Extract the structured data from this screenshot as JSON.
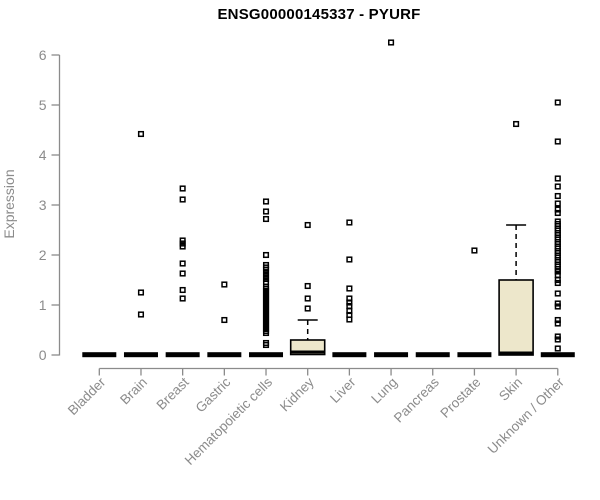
{
  "colors": {
    "background": "#FFFFFF",
    "title": "#000000",
    "axis": "#8B8B8B",
    "data": "#000000",
    "box_fill": "#EDE7CB"
  },
  "chart_data": {
    "type": "boxplot",
    "title": "ENSG00000145337 - PYURF",
    "ylabel": "Expression",
    "xlabel": "",
    "ylim": [
      0,
      6
    ],
    "yticks": [
      "0",
      "1",
      "2",
      "3",
      "4",
      "5",
      "6"
    ],
    "grid": false,
    "legend": "none",
    "categories": [
      "Bladder",
      "Brain",
      "Breast",
      "Gastric",
      "Hematopoietic cells",
      "Kidney",
      "Liver",
      "Lung",
      "Pancreas",
      "Prostate",
      "Skin",
      "Unknown / Other"
    ],
    "series": [
      {
        "name": "Bladder",
        "collapsed": true,
        "q1": 0,
        "median": 0,
        "q3": 0.04,
        "whisker_low": 0,
        "whisker_high": 0.04,
        "outliers": []
      },
      {
        "name": "Brain",
        "collapsed": true,
        "q1": 0,
        "median": 0,
        "q3": 0.04,
        "whisker_low": 0,
        "whisker_high": 0.04,
        "outliers": [
          4.42,
          1.25,
          0.81
        ]
      },
      {
        "name": "Breast",
        "collapsed": true,
        "q1": 0,
        "median": 0,
        "q3": 0.04,
        "whisker_low": 0,
        "whisker_high": 0.04,
        "outliers": [
          3.33,
          3.11,
          2.29,
          2.23,
          2.17,
          1.83,
          1.63,
          1.3,
          1.13
        ]
      },
      {
        "name": "Gastric",
        "collapsed": true,
        "q1": 0,
        "median": 0,
        "q3": 0.04,
        "whisker_low": 0,
        "whisker_high": 0.04,
        "outliers": [
          1.41,
          0.7
        ]
      },
      {
        "name": "Hematopoietic cells",
        "collapsed": true,
        "q1": 0,
        "median": 0,
        "q3": 0.04,
        "whisker_low": 0,
        "whisker_high": 0.04,
        "outliers": [
          3.07,
          2.87,
          2.72,
          2.0,
          1.8,
          1.75,
          1.7,
          1.64,
          1.58,
          1.52,
          1.46,
          1.36,
          1.32,
          1.28,
          1.24,
          1.2,
          1.16,
          1.12,
          1.08,
          1.04,
          1.0,
          0.96,
          0.92,
          0.88,
          0.84,
          0.8,
          0.76,
          0.72,
          0.68,
          0.64,
          0.6,
          0.56,
          0.52,
          0.48,
          0.44,
          0.24,
          0.2
        ]
      },
      {
        "name": "Kidney",
        "collapsed": false,
        "q1": 0.01,
        "median": 0.04,
        "q3": 0.3,
        "whisker_low": 0,
        "whisker_high": 0.7,
        "outliers": [
          2.6,
          1.38,
          1.13,
          0.93
        ]
      },
      {
        "name": "Liver",
        "collapsed": true,
        "q1": 0,
        "median": 0,
        "q3": 0.04,
        "whisker_low": 0,
        "whisker_high": 0.04,
        "outliers": [
          2.65,
          1.91,
          1.33,
          1.13,
          1.05,
          0.98,
          0.88,
          0.8,
          0.71
        ]
      },
      {
        "name": "Lung",
        "collapsed": true,
        "q1": 0,
        "median": 0,
        "q3": 0.04,
        "whisker_low": 0,
        "whisker_high": 0.04,
        "outliers": [
          6.25
        ]
      },
      {
        "name": "Pancreas",
        "collapsed": true,
        "q1": 0,
        "median": 0,
        "q3": 0.04,
        "whisker_low": 0,
        "whisker_high": 0.04,
        "outliers": []
      },
      {
        "name": "Prostate",
        "collapsed": true,
        "q1": 0,
        "median": 0,
        "q3": 0.04,
        "whisker_low": 0,
        "whisker_high": 0.04,
        "outliers": [
          2.09
        ]
      },
      {
        "name": "Skin",
        "collapsed": false,
        "q1": 0.0,
        "median": 0.02,
        "q3": 1.5,
        "whisker_low": 0,
        "whisker_high": 2.6,
        "outliers": [
          4.62
        ]
      },
      {
        "name": "Unknown / Other",
        "collapsed": true,
        "q1": 0,
        "median": 0,
        "q3": 0.04,
        "whisker_low": 0,
        "whisker_high": 0.04,
        "outliers": [
          5.05,
          4.27,
          3.53,
          3.37,
          3.18,
          3.03,
          2.91,
          2.84,
          2.67,
          2.62,
          2.58,
          2.53,
          2.49,
          2.44,
          2.4,
          2.35,
          2.31,
          2.26,
          2.22,
          2.17,
          2.13,
          2.08,
          2.04,
          1.99,
          1.95,
          1.9,
          1.86,
          1.81,
          1.77,
          1.72,
          1.67,
          1.6,
          1.5,
          1.44,
          1.23,
          1.03,
          0.97,
          0.7,
          0.63,
          0.37,
          0.31,
          0.13
        ]
      }
    ]
  }
}
